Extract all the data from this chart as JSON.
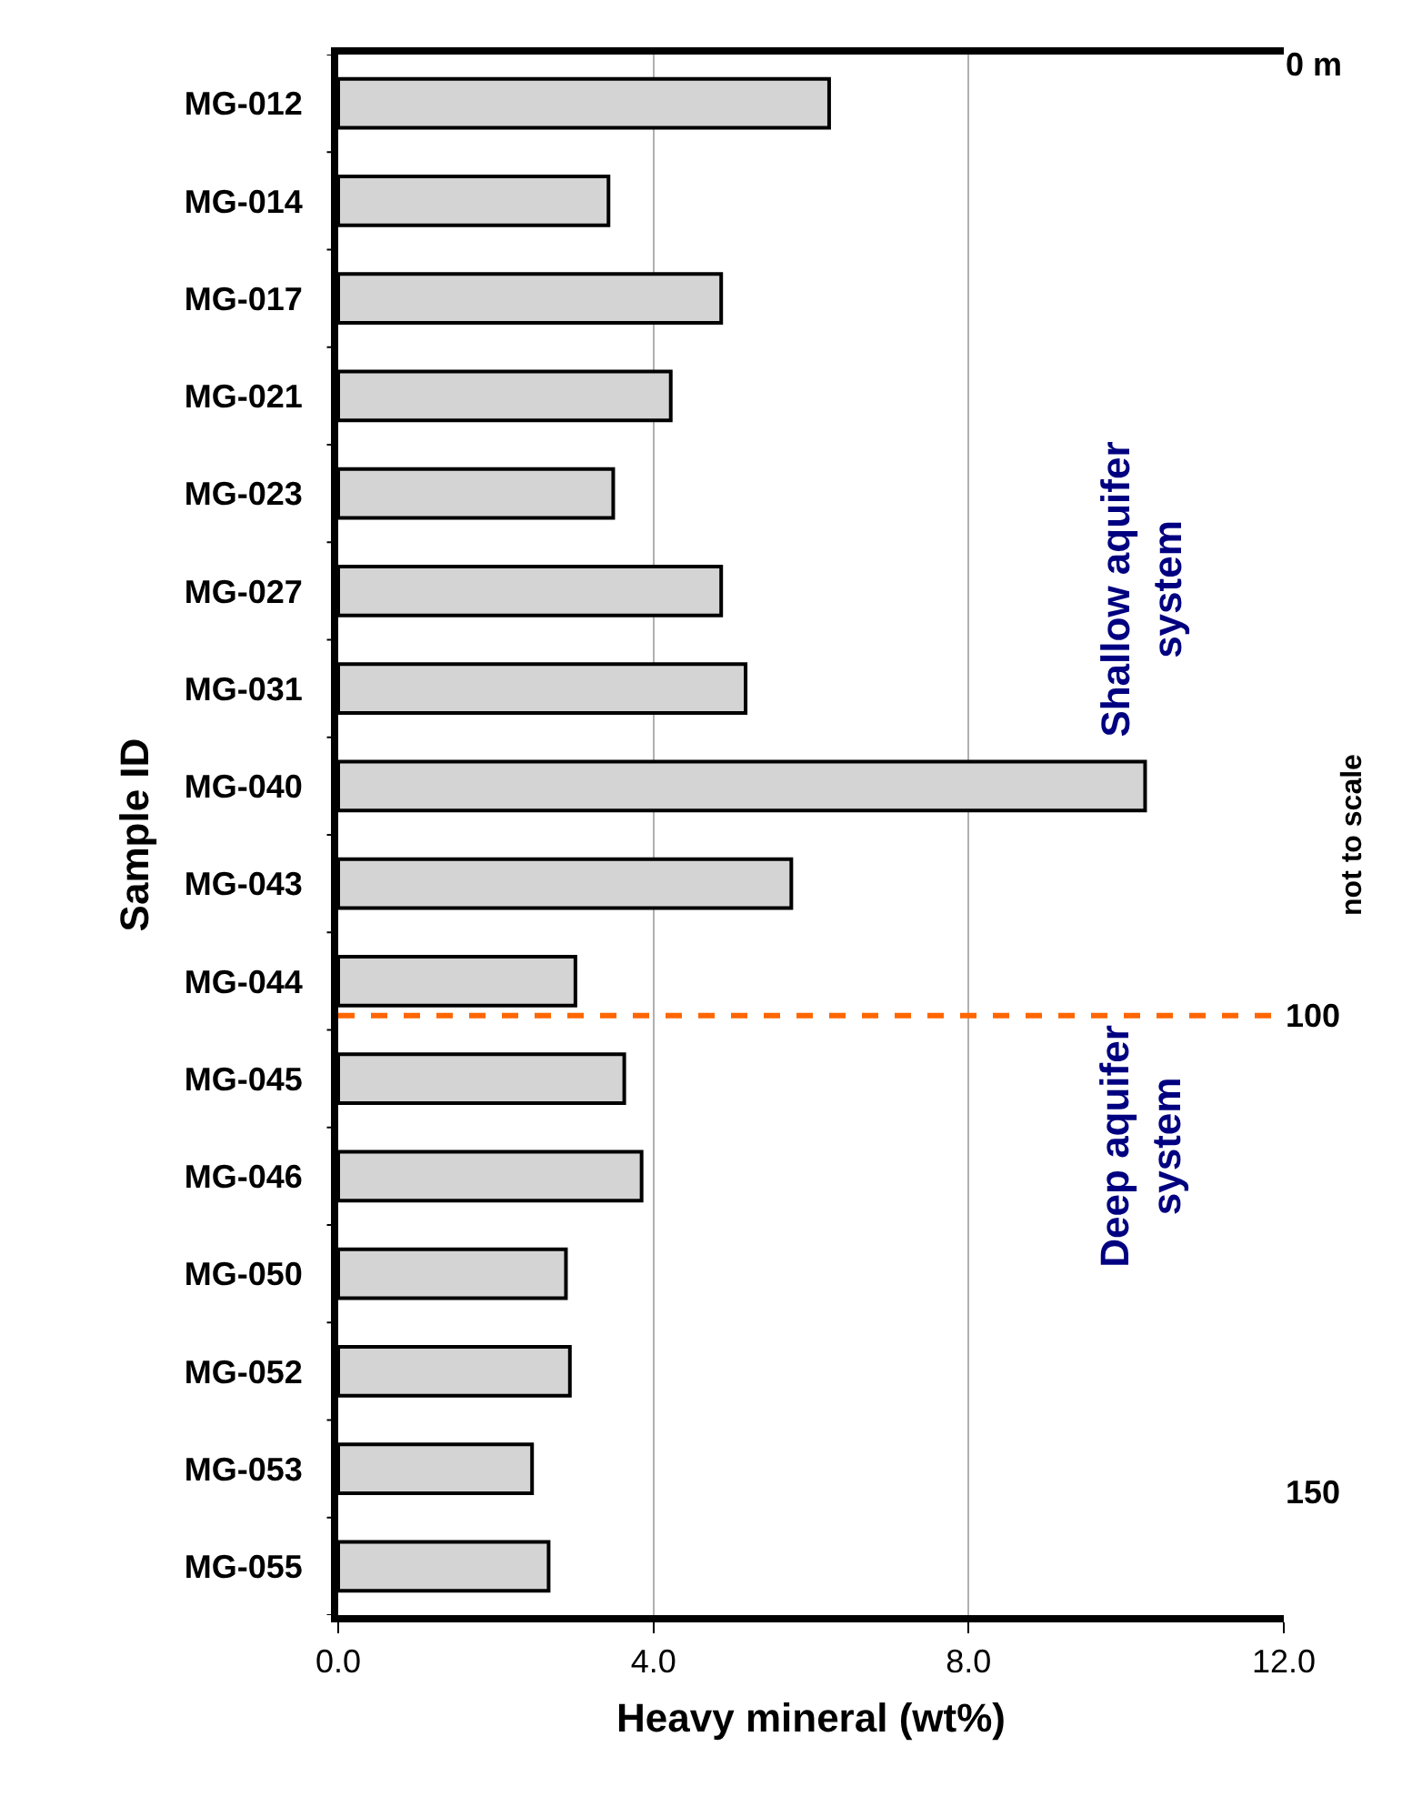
{
  "chart_data": {
    "type": "bar",
    "orientation": "horizontal",
    "ylabel": "Sample ID",
    "xlabel": "Heavy mineral (wt%)",
    "y2label": "not to scale",
    "categories": [
      "MG-012",
      "MG-014",
      "MG-017",
      "MG-021",
      "MG-023",
      "MG-027",
      "MG-031",
      "MG-040",
      "MG-043",
      "MG-044",
      "MG-045",
      "MG-046",
      "MG-050",
      "MG-052",
      "MG-053",
      "MG-055"
    ],
    "values": [
      6.23,
      3.43,
      4.86,
      4.22,
      3.49,
      4.86,
      5.17,
      10.24,
      5.75,
      3.01,
      3.63,
      3.85,
      2.89,
      2.94,
      2.46,
      2.67
    ],
    "color": "#d4d4d4",
    "xlim": [
      0,
      12
    ],
    "xticks": [
      {
        "value": 0,
        "label": "0.0"
      },
      {
        "value": 4,
        "label": "4.0"
      },
      {
        "value": 8,
        "label": "8.0"
      },
      {
        "value": 12,
        "label": "12.0"
      }
    ],
    "y2lim": [
      163,
      -1
    ],
    "y2ticks": [
      {
        "value": 0,
        "label": "0 m"
      },
      100,
      150
    ],
    "ref_lines": [
      {
        "axis": "y2",
        "value": 100,
        "color": "#ff6600",
        "line_style": "dashed"
      }
    ],
    "annotations": [
      "Shallow aquifer\nsystem",
      "Deep aquifer\nsystem"
    ],
    "grid": "x",
    "legend": false
  }
}
